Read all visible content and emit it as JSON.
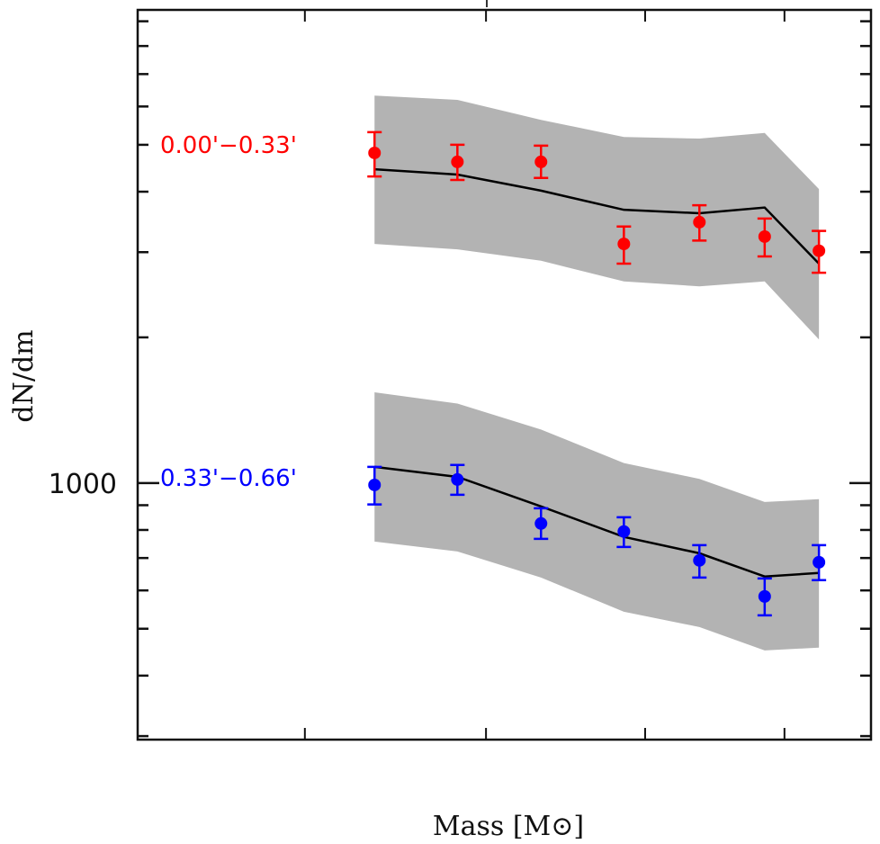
{
  "chart_data": {
    "type": "scatter",
    "title": "",
    "xlabel": "Mass [M⊙]",
    "ylabel": "dN/dm",
    "x_scale": "log (tick labels not visible; x given as normalized axis fraction)",
    "xlim": [
      0,
      1
    ],
    "x_ticks": [
      0.228,
      0.475,
      0.692,
      0.882
    ],
    "y_scale": "log",
    "ylim": [
      295,
      9500
    ],
    "y_major_ticks": [
      1000
    ],
    "y_tick_labels": [
      "1000"
    ],
    "y_minor_ticks": [
      300,
      400,
      500,
      600,
      700,
      800,
      900,
      2000,
      3000,
      4000,
      5000,
      6000,
      7000,
      8000,
      9000
    ],
    "grid": false,
    "legend": "none (inline annotations at left)",
    "x": [
      0.323,
      0.436,
      0.55,
      0.663,
      0.766,
      0.855,
      0.929
    ],
    "series": [
      {
        "name": "0.00'−0.33'",
        "color": "#ff0000",
        "values": [
          4810,
          4610,
          4610,
          3120,
          3460,
          3230,
          3020
        ],
        "err_upper": [
          5310,
          5000,
          4980,
          3390,
          3750,
          3520,
          3320
        ],
        "err_lower": [
          4300,
          4230,
          4270,
          2840,
          3170,
          2940,
          2720
        ],
        "model": [
          4450,
          4340,
          4020,
          3670,
          3610,
          3710,
          2840
        ],
        "model_band_upper": [
          6320,
          6190,
          5630,
          5190,
          5150,
          5290,
          4050
        ],
        "model_band_lower": [
          3120,
          3040,
          2880,
          2610,
          2550,
          2610,
          1980
        ]
      },
      {
        "name": "0.33'−0.66'",
        "color": "#0000ff",
        "values": [
          991,
          1017,
          825,
          794,
          692,
          583,
          686
        ],
        "err_upper": [
          1080,
          1090,
          887,
          850,
          744,
          635,
          744
        ],
        "err_lower": [
          903,
          946,
          767,
          738,
          638,
          533,
          630
        ],
        "model": [
          1080,
          1030,
          895,
          774,
          716,
          641,
          652
        ],
        "model_band_upper": [
          1540,
          1460,
          1290,
          1100,
          1020,
          914,
          926
        ],
        "model_band_lower": [
          757,
          722,
          638,
          542,
          504,
          451,
          457
        ]
      }
    ],
    "colors": {
      "band": "#b3b3b3",
      "model_line": "#000000",
      "axes": "#111111"
    }
  }
}
